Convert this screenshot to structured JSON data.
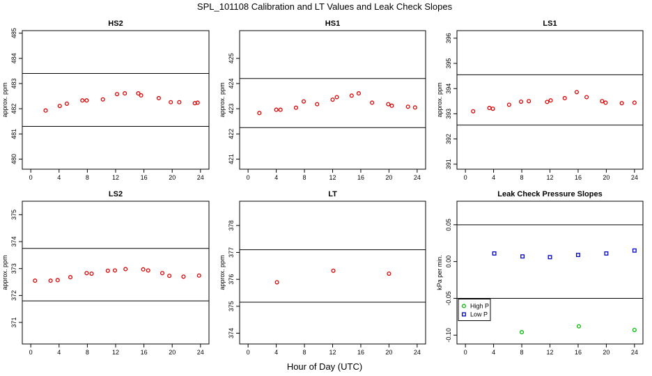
{
  "figure": {
    "title": "SPL_101108  Calibration and LT Values and Leak Check Slopes",
    "xlabel": "Hour of Day (UTC)"
  },
  "colors": {
    "calibration": "#dd0000",
    "high_p": "#00bb00",
    "low_p": "#0000cc",
    "reference": "#000000"
  },
  "chart_data": [
    {
      "type": "scatter",
      "title": "HS2",
      "ylabel": "approx. ppm",
      "xlim": [
        -1.2,
        25.2
      ],
      "ylim": [
        479.6,
        485.1
      ],
      "xticks": [
        0,
        4,
        8,
        12,
        16,
        20,
        24
      ],
      "yticks": [
        480,
        481,
        482,
        483,
        484,
        485
      ],
      "hlines": [
        481.3,
        483.4
      ],
      "color": "#dd0000",
      "x": [
        2.1,
        4.1,
        5.1,
        7.3,
        7.9,
        10.2,
        12.2,
        13.3,
        15.2,
        15.6,
        18.1,
        19.8,
        21.0,
        23.2,
        23.6
      ],
      "y": [
        481.93,
        482.11,
        482.2,
        482.33,
        482.33,
        482.37,
        482.58,
        482.61,
        482.61,
        482.53,
        482.42,
        482.26,
        482.26,
        482.22,
        482.24
      ]
    },
    {
      "type": "scatter",
      "title": "HS1",
      "ylabel": "approx. ppm",
      "xlim": [
        -1.2,
        25.2
      ],
      "ylim": [
        420.6,
        426.1
      ],
      "xticks": [
        0,
        4,
        8,
        12,
        16,
        20,
        24
      ],
      "yticks": [
        421,
        422,
        423,
        424,
        425
      ],
      "hlines": [
        422.25,
        424.2
      ],
      "color": "#dd0000",
      "x": [
        1.6,
        4.0,
        4.6,
        6.8,
        7.9,
        9.8,
        12.0,
        12.6,
        14.7,
        15.7,
        17.6,
        19.9,
        20.4,
        22.7,
        23.7
      ],
      "y": [
        422.83,
        422.96,
        422.96,
        423.04,
        423.29,
        423.18,
        423.36,
        423.46,
        423.52,
        423.61,
        423.24,
        423.18,
        423.12,
        423.08,
        423.05
      ]
    },
    {
      "type": "scatter",
      "title": "LS1",
      "ylabel": "approx. ppm",
      "xlim": [
        -1.2,
        25.2
      ],
      "ylim": [
        390.8,
        396.3
      ],
      "xticks": [
        0,
        4,
        8,
        12,
        16,
        20,
        24
      ],
      "yticks": [
        391,
        392,
        393,
        394,
        395,
        396
      ],
      "hlines": [
        392.55,
        394.55
      ],
      "color": "#dd0000",
      "x": [
        1.1,
        3.4,
        3.9,
        6.2,
        7.9,
        9.0,
        11.6,
        12.1,
        14.1,
        15.8,
        17.2,
        19.4,
        19.9,
        22.2,
        24.0
      ],
      "y": [
        393.1,
        393.23,
        393.2,
        393.36,
        393.48,
        393.5,
        393.47,
        393.53,
        393.62,
        393.86,
        393.66,
        393.5,
        393.44,
        393.42,
        393.44
      ]
    },
    {
      "type": "scatter",
      "title": "LS2",
      "ylabel": "approx. ppm",
      "xlim": [
        -1.2,
        25.2
      ],
      "ylim": [
        370.2,
        375.5
      ],
      "xticks": [
        0,
        4,
        8,
        12,
        16,
        20,
        24
      ],
      "yticks": [
        371,
        372,
        373,
        374,
        375
      ],
      "hlines": [
        371.8,
        373.75
      ],
      "color": "#dd0000",
      "x": [
        0.6,
        2.8,
        3.8,
        5.6,
        7.9,
        8.6,
        10.9,
        11.9,
        13.4,
        15.9,
        16.6,
        18.6,
        19.6,
        21.6,
        23.8
      ],
      "y": [
        372.55,
        372.55,
        372.57,
        372.68,
        372.83,
        372.81,
        372.92,
        372.93,
        372.98,
        372.97,
        372.93,
        372.83,
        372.73,
        372.7,
        372.74
      ]
    },
    {
      "type": "scatter",
      "title": "LT",
      "ylabel": "approx. ppm",
      "xlim": [
        -1.2,
        25.2
      ],
      "ylim": [
        373.6,
        378.9
      ],
      "xticks": [
        0,
        4,
        8,
        12,
        16,
        20,
        24
      ],
      "yticks": [
        374,
        375,
        376,
        377,
        378
      ],
      "hlines": [
        375.15,
        377.1
      ],
      "color": "#dd0000",
      "x": [
        4.1,
        12.1,
        20.0
      ],
      "y": [
        375.89,
        376.32,
        376.21
      ]
    },
    {
      "type": "scatter",
      "title": "Leak Check Pressure Slopes",
      "ylabel": "kPa per min.",
      "xlim": [
        -1.2,
        25.2
      ],
      "ylim": [
        -0.112,
        0.082
      ],
      "xticks": [
        0,
        4,
        8,
        12,
        16,
        20,
        24
      ],
      "yticks": [
        -0.1,
        -0.05,
        0.0,
        0.05
      ],
      "hlines": [
        -0.05,
        0.05
      ],
      "series": [
        {
          "name": "High P",
          "marker": "circle",
          "color": "#00bb00",
          "x": [
            8.0,
            16.1,
            24.0
          ],
          "y": [
            -0.096,
            -0.088,
            -0.093
          ]
        },
        {
          "name": "Low P",
          "marker": "square",
          "color": "#0000cc",
          "x": [
            4.1,
            8.1,
            12.0,
            16.0,
            20.0,
            24.0
          ],
          "y": [
            0.011,
            0.007,
            0.006,
            0.009,
            0.011,
            0.015
          ]
        }
      ],
      "legend": "bottom-left"
    }
  ]
}
